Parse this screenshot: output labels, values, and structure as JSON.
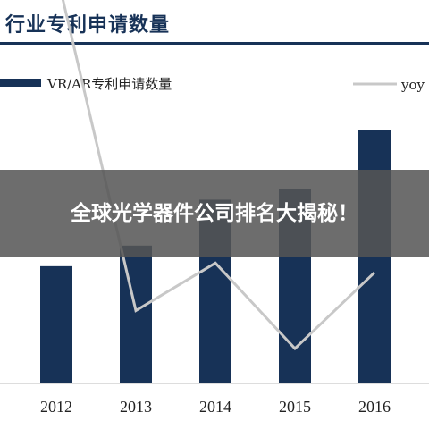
{
  "header": {
    "title": "行业专利申请数量"
  },
  "overlay": {
    "text": "全球光学器件公司排名大揭秘！"
  },
  "colors": {
    "bar": "#173257",
    "line": "#c8c8c8",
    "title": "#173257"
  },
  "chart_data": {
    "type": "bar",
    "title": "",
    "xlabel": "",
    "ylabel": "",
    "categories": [
      "2012",
      "2013",
      "2014",
      "2015",
      "2016"
    ],
    "series": [
      {
        "name": "VR/AR专利申请数量",
        "type": "bar",
        "values": [
          74,
          87,
          116,
          123,
          160
        ]
      },
      {
        "name": "yoy",
        "type": "line",
        "values": [
          1.25,
          0.18,
          0.33,
          0.06,
          0.3
        ]
      }
    ],
    "ylim": [
      0,
      180
    ],
    "y2lim": [
      -0.05,
      0.85
    ],
    "grid": false,
    "legend": "top"
  }
}
